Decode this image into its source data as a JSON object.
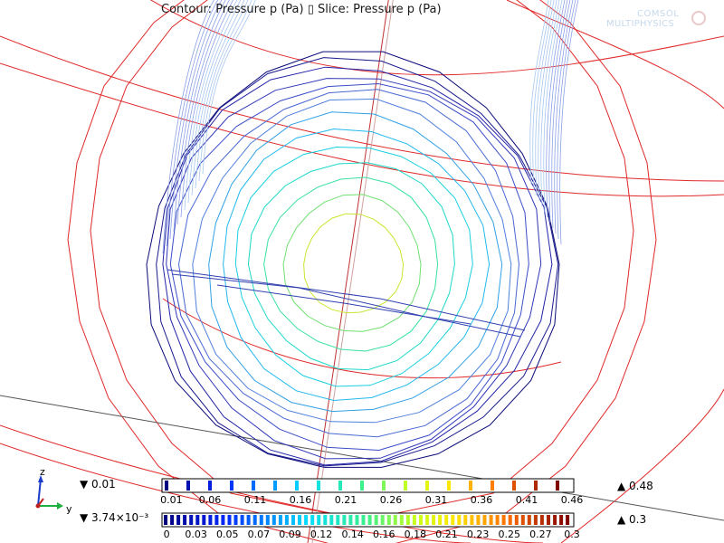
{
  "plot": {
    "title": "Contour: Pressure p (Pa)  ▯ Slice: Pressure p (Pa)"
  },
  "logo": {
    "line1": "COMSOL",
    "line2": "MULTIPHYSICS"
  },
  "axes": {
    "x": "",
    "y": "y",
    "z": "z"
  },
  "contour_legend": {
    "min": "▼ 0.01",
    "max": "▲ 0.48",
    "ticks": [
      "0.01",
      "0.06",
      "0.11",
      "0.16",
      "0.21",
      "0.26",
      "0.31",
      "0.36",
      "0.41",
      "0.46"
    ],
    "colors": [
      "#00007f",
      "#0000c8",
      "#0a2cff",
      "#1478ff",
      "#1cb8ff",
      "#22e6e6",
      "#3cf0a0",
      "#7aff5a",
      "#c8ff1e",
      "#ffe800",
      "#ffb400",
      "#ff7800",
      "#ff3c00",
      "#e00000",
      "#a00000",
      "#7f0000"
    ]
  },
  "slice_legend": {
    "min": "▼ 3.74×10⁻³",
    "max": "▲ 0.3",
    "ticks": [
      "0",
      "0.03",
      "0.05",
      "0.07",
      "0.09",
      "0.12",
      "0.14",
      "0.16",
      "0.18",
      "0.21",
      "0.23",
      "0.25",
      "0.27",
      "0.3"
    ]
  }
}
